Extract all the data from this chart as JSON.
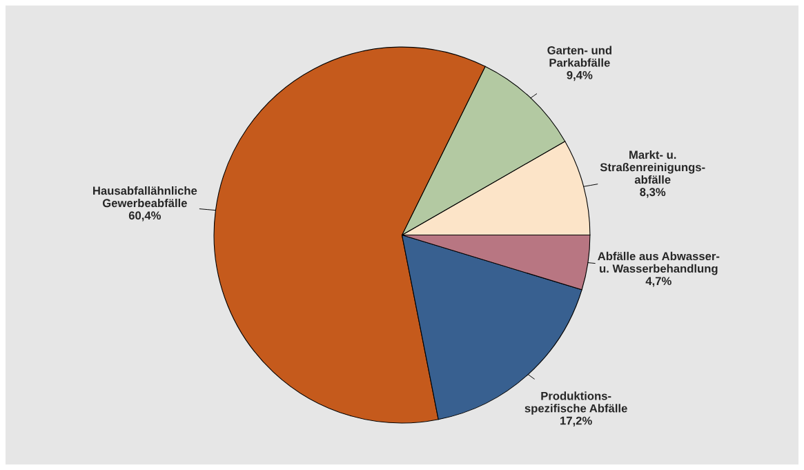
{
  "chart_data": {
    "type": "pie",
    "categories": [
      "Markt- u.\nStraßenreinigungs-\nabfälle",
      "Garten- und\nParkabfälle",
      "Hausabfallähnliche\nGewerbeabfälle",
      "Produktions-\nspezifische Abfälle",
      "Abfälle aus Abwasser-\nu. Wasserbehandlung"
    ],
    "values": [
      8.3,
      9.4,
      60.4,
      17.2,
      4.7
    ],
    "value_labels": [
      "8,3%",
      "9,4%",
      "60,4%",
      "17,2%",
      "4,7%"
    ],
    "colors": [
      "#fce4c8",
      "#b3c9a2",
      "#c55a1c",
      "#386090",
      "#b87682"
    ]
  }
}
